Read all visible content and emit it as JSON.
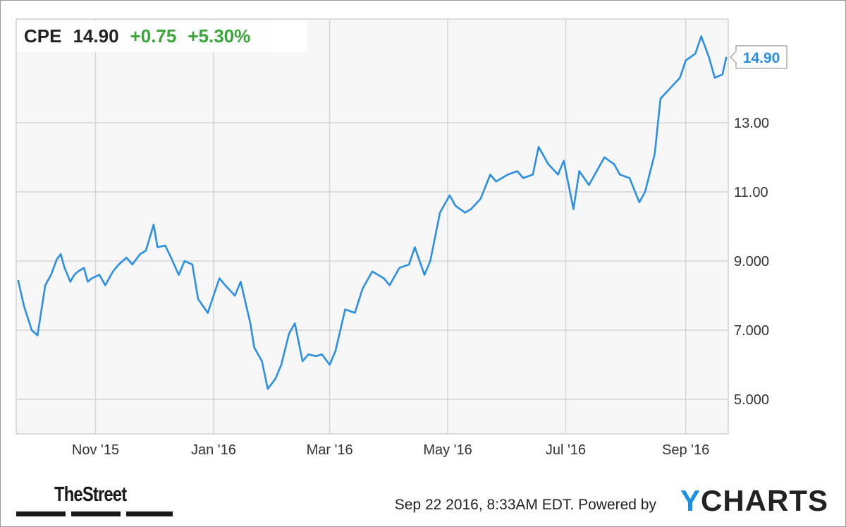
{
  "header": {
    "symbol": "CPE",
    "price": "14.90",
    "change": "+0.75",
    "change_pct": "+5.30%",
    "change_color": "#2ca02c"
  },
  "footer": {
    "timestamp": "Sep 22 2016, 8:33AM EDT.",
    "powered_by": "Powered by",
    "brand_y": "Y",
    "brand_rest": "CHARTS",
    "publisher": "TheStreet"
  },
  "chart_data": {
    "type": "line",
    "title": "",
    "xlabel": "",
    "ylabel": "",
    "line_color": "#2b8fe3",
    "grid": true,
    "ylim": [
      4.0,
      16.0
    ],
    "yticks": [
      5,
      7,
      9,
      11,
      13
    ],
    "ytick_labels": [
      "5.000",
      "7.000",
      "9.000",
      "11.00",
      "13.00"
    ],
    "xticks": [
      "2015-11-01",
      "2016-01-01",
      "2016-03-01",
      "2016-05-01",
      "2016-07-01",
      "2016-09-01"
    ],
    "xtick_labels": [
      "Nov '15",
      "Jan '16",
      "Mar '16",
      "May '16",
      "Jul '16",
      "Sep '16"
    ],
    "last_value_label": "14.90",
    "series": [
      {
        "x": [
          "2015-09-22",
          "2015-09-25",
          "2015-09-29",
          "2015-10-02",
          "2015-10-06",
          "2015-10-09",
          "2015-10-12",
          "2015-10-14",
          "2015-10-16",
          "2015-10-19",
          "2015-10-21",
          "2015-10-23",
          "2015-10-26",
          "2015-10-28",
          "2015-10-30",
          "2015-11-03",
          "2015-11-06",
          "2015-11-10",
          "2015-11-13",
          "2015-11-17",
          "2015-11-20",
          "2015-11-24",
          "2015-11-27",
          "2015-12-01",
          "2015-12-03",
          "2015-12-07",
          "2015-12-10",
          "2015-12-14",
          "2015-12-17",
          "2015-12-21",
          "2015-12-24",
          "2015-12-29",
          "2016-01-04",
          "2016-01-07",
          "2016-01-12",
          "2016-01-15",
          "2016-01-20",
          "2016-01-22",
          "2016-01-26",
          "2016-01-29",
          "2016-02-02",
          "2016-02-05",
          "2016-02-09",
          "2016-02-12",
          "2016-02-16",
          "2016-02-19",
          "2016-02-23",
          "2016-02-26",
          "2016-03-01",
          "2016-03-04",
          "2016-03-09",
          "2016-03-14",
          "2016-03-18",
          "2016-03-23",
          "2016-03-29",
          "2016-04-01",
          "2016-04-06",
          "2016-04-11",
          "2016-04-14",
          "2016-04-19",
          "2016-04-22",
          "2016-04-27",
          "2016-05-02",
          "2016-05-05",
          "2016-05-10",
          "2016-05-13",
          "2016-05-18",
          "2016-05-23",
          "2016-05-26",
          "2016-06-01",
          "2016-06-06",
          "2016-06-09",
          "2016-06-14",
          "2016-06-17",
          "2016-06-22",
          "2016-06-27",
          "2016-06-30",
          "2016-07-05",
          "2016-07-08",
          "2016-07-13",
          "2016-07-18",
          "2016-07-21",
          "2016-07-26",
          "2016-07-29",
          "2016-08-03",
          "2016-08-08",
          "2016-08-11",
          "2016-08-16",
          "2016-08-19",
          "2016-08-24",
          "2016-08-29",
          "2016-09-01",
          "2016-09-06",
          "2016-09-09",
          "2016-09-13",
          "2016-09-16",
          "2016-09-20",
          "2016-09-22"
        ],
        "y": [
          8.45,
          7.7,
          7.0,
          6.85,
          8.3,
          8.6,
          9.05,
          9.2,
          8.8,
          8.4,
          8.6,
          8.7,
          8.8,
          8.4,
          8.5,
          8.6,
          8.3,
          8.7,
          8.9,
          9.1,
          8.9,
          9.2,
          9.3,
          10.05,
          9.4,
          9.45,
          9.1,
          8.6,
          9.0,
          8.9,
          7.9,
          7.5,
          8.5,
          8.3,
          8.0,
          8.4,
          7.2,
          6.5,
          6.1,
          5.3,
          5.6,
          6.0,
          6.9,
          7.2,
          6.1,
          6.3,
          6.25,
          6.3,
          6.0,
          6.4,
          7.6,
          7.5,
          8.2,
          8.7,
          8.5,
          8.3,
          8.8,
          8.9,
          9.4,
          8.6,
          9.0,
          10.4,
          10.9,
          10.6,
          10.4,
          10.5,
          10.8,
          11.5,
          11.3,
          11.5,
          11.6,
          11.4,
          11.5,
          12.3,
          11.8,
          11.5,
          11.9,
          10.5,
          11.6,
          11.2,
          11.7,
          12.0,
          11.8,
          11.5,
          11.4,
          10.7,
          11.0,
          12.1,
          13.7,
          14.0,
          14.3,
          14.8,
          15.0,
          15.5,
          14.9,
          14.3,
          14.4,
          14.9
        ]
      }
    ]
  }
}
